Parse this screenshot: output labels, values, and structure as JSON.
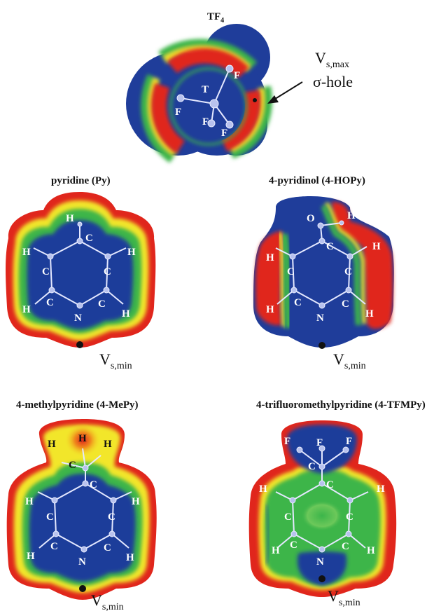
{
  "colors": {
    "red": "#e0261c",
    "orange": "#f08a1c",
    "yellow": "#f2e62a",
    "green": "#3cb54a",
    "blue": "#1f3d9a"
  },
  "panels": {
    "tf4": {
      "title_main": "TF",
      "title_sub": "4",
      "atoms": {
        "t": "T",
        "f1": "F",
        "f2": "F",
        "f3": "F",
        "f4": "F"
      },
      "vmax_main": "V",
      "vmax_sub": "s,max",
      "sigma_hole": "σ-hole"
    },
    "py": {
      "title": "pyridine (Py)",
      "atoms": [
        "H",
        "C",
        "H",
        "C",
        "C",
        "H",
        "H",
        "C",
        "C",
        "H",
        "N"
      ],
      "vmin_main": "V",
      "vmin_sub": "s,min"
    },
    "hopy": {
      "title": "4-pyridinol (4-HOPy)",
      "atoms": [
        "O",
        "H",
        "C",
        "H",
        "H",
        "C",
        "C",
        "H",
        "C",
        "C",
        "H",
        "N"
      ],
      "vmin_main": "V",
      "vmin_sub": "s,min"
    },
    "mepy": {
      "title": "4-methylpyridine (4-MePy)",
      "atoms": [
        "H",
        "H",
        "H",
        "C",
        "C",
        "H",
        "C",
        "C",
        "H",
        "H",
        "C",
        "C",
        "H",
        "N"
      ],
      "vmin_main": "V",
      "vmin_sub": "s,min"
    },
    "tfmpy": {
      "title": "4-trifluoromethylpyridine (4-TFMPy)",
      "atoms": [
        "F",
        "F",
        "F",
        "C",
        "C",
        "H",
        "H",
        "C",
        "C",
        "H",
        "H",
        "C",
        "C",
        "N"
      ],
      "vmin_main": "V",
      "vmin_sub": "s,min"
    }
  }
}
